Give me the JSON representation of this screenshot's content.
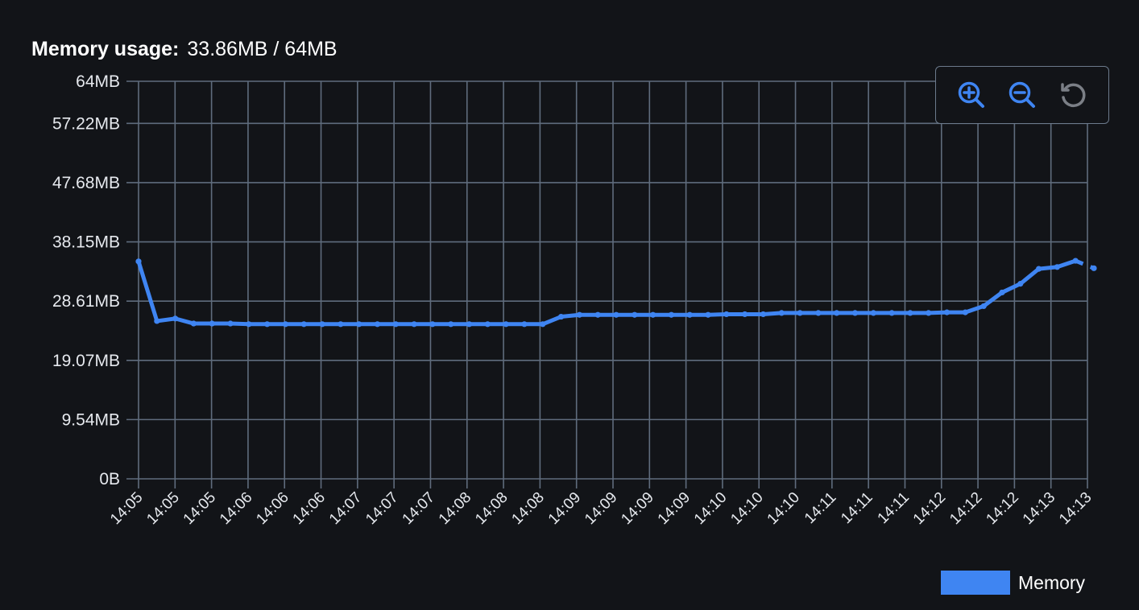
{
  "header": {
    "label": "Memory usage:",
    "value": "33.86MB / 64MB"
  },
  "toolbar": {
    "zoom_in": "zoom-in-icon",
    "zoom_out": "zoom-out-icon",
    "reset": "reset-zoom-icon"
  },
  "legend": {
    "label": "Memory",
    "color": "#3f85f2"
  },
  "colors": {
    "background": "#121418",
    "grid": "#5f6c7d",
    "line": "#3f85f2"
  },
  "chart_data": {
    "type": "line",
    "title": "",
    "xlabel": "",
    "ylabel": "",
    "grid": true,
    "legend_position": "bottom-right",
    "ylim": [
      0,
      64
    ],
    "y_unit": "MB",
    "y_ticks": [
      {
        "value": 0,
        "label": "0B"
      },
      {
        "value": 9.54,
        "label": "9.54MB"
      },
      {
        "value": 19.07,
        "label": "19.07MB"
      },
      {
        "value": 28.61,
        "label": "28.61MB"
      },
      {
        "value": 38.15,
        "label": "38.15MB"
      },
      {
        "value": 47.68,
        "label": "47.68MB"
      },
      {
        "value": 57.22,
        "label": "57.22MB"
      },
      {
        "value": 64,
        "label": "64MB"
      }
    ],
    "x_tick_labels": [
      "14:05",
      "14:05",
      "14:05",
      "14:06",
      "14:06",
      "14:06",
      "14:07",
      "14:07",
      "14:07",
      "14:08",
      "14:08",
      "14:08",
      "14:09",
      "14:09",
      "14:09",
      "14:09",
      "14:10",
      "14:10",
      "14:10",
      "14:11",
      "14:11",
      "14:11",
      "14:12",
      "14:12",
      "14:12",
      "14:13",
      "14:13"
    ],
    "series": [
      {
        "name": "Memory",
        "values": [
          35.0,
          25.4,
          25.8,
          25.0,
          25.0,
          25.0,
          24.9,
          24.9,
          24.9,
          24.9,
          24.9,
          24.9,
          24.9,
          24.9,
          24.9,
          24.9,
          24.9,
          24.9,
          24.9,
          24.9,
          24.9,
          24.9,
          24.9,
          26.1,
          26.4,
          26.4,
          26.4,
          26.4,
          26.4,
          26.4,
          26.4,
          26.4,
          26.5,
          26.5,
          26.5,
          26.7,
          26.7,
          26.7,
          26.7,
          26.7,
          26.7,
          26.7,
          26.7,
          26.7,
          26.8,
          26.8,
          27.8,
          30.0,
          31.4,
          33.8,
          34.1,
          35.1,
          33.9
        ],
        "dashed_from_index": 51
      }
    ]
  }
}
